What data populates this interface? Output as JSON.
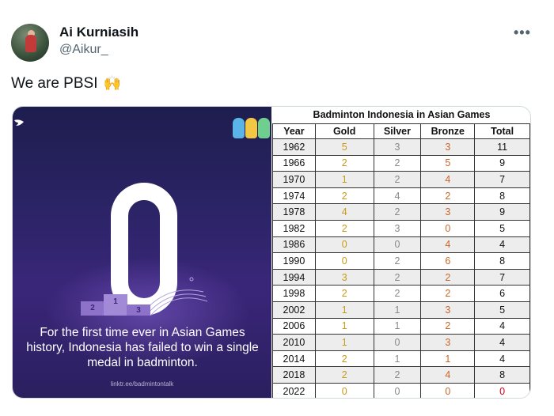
{
  "user": {
    "name": "Ai Kurniasih",
    "handle": "@Aikur_"
  },
  "more_label": "•••",
  "tweet": {
    "text": "We are PBSI",
    "emoji": "🙌"
  },
  "graphic": {
    "big_number": "0",
    "caption": "For the first time ever in Asian Games history, Indonesia has failed to win a single medal in badminton.",
    "credit": "linktr.ee/badmintontalk",
    "podium": [
      "2",
      "1",
      "3"
    ]
  },
  "medal_table": {
    "title": "Badminton Indonesia in Asian Games",
    "headers": [
      "Year",
      "Gold",
      "Silver",
      "Bronze",
      "Total"
    ],
    "rows": [
      [
        "1962",
        "5",
        "3",
        "3",
        "11"
      ],
      [
        "1966",
        "2",
        "2",
        "5",
        "9"
      ],
      [
        "1970",
        "1",
        "2",
        "4",
        "7"
      ],
      [
        "1974",
        "2",
        "4",
        "2",
        "8"
      ],
      [
        "1978",
        "4",
        "2",
        "3",
        "9"
      ],
      [
        "1982",
        "2",
        "3",
        "0",
        "5"
      ],
      [
        "1986",
        "0",
        "0",
        "4",
        "4"
      ],
      [
        "1990",
        "0",
        "2",
        "6",
        "8"
      ],
      [
        "1994",
        "3",
        "2",
        "2",
        "7"
      ],
      [
        "1998",
        "2",
        "2",
        "2",
        "6"
      ],
      [
        "2002",
        "1",
        "1",
        "3",
        "5"
      ],
      [
        "2006",
        "1",
        "1",
        "2",
        "4"
      ],
      [
        "2010",
        "1",
        "0",
        "3",
        "4"
      ],
      [
        "2014",
        "2",
        "1",
        "1",
        "4"
      ],
      [
        "2018",
        "2",
        "2",
        "4",
        "8"
      ],
      [
        "2022",
        "0",
        "0",
        "0",
        "0"
      ]
    ]
  },
  "colors": {
    "gold": "#c99a1a",
    "silver": "#8a8a8a",
    "bronze": "#c8662a",
    "zero_total": "#d0021b",
    "panel_bg": "#2b2466"
  }
}
